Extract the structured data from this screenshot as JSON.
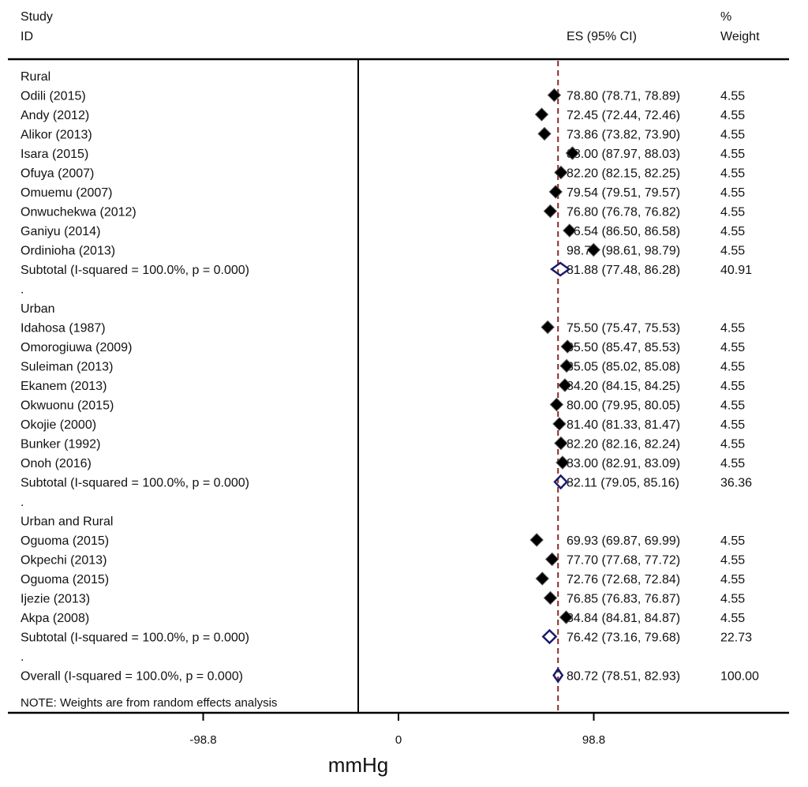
{
  "chart_data": {
    "type": "forest",
    "header": {
      "study_line1": "Study",
      "study_line2": "ID",
      "es_label": "ES (95% CI)",
      "weight_line1": "%",
      "weight_line2": "Weight"
    },
    "xlabel": "mmHg",
    "xlim": [
      -197.6,
      197.6
    ],
    "ticks": [
      {
        "value": -98.8,
        "label": "-98.8"
      },
      {
        "value": 0,
        "label": "0"
      },
      {
        "value": 98.8,
        "label": "98.8"
      }
    ],
    "reference_line": 80.72,
    "colors": {
      "point": "#000000",
      "diamond": "#1a1a6e",
      "refline": "#8b2a2a",
      "axis": "#000000"
    },
    "note": "NOTE: Weights are from random effects analysis",
    "rows": [
      {
        "kind": "group",
        "label": "Rural"
      },
      {
        "kind": "study",
        "label": "Odili (2015)",
        "es": 78.8,
        "lo": 78.71,
        "hi": 78.89,
        "es_text": "78.80 (78.71, 78.89)",
        "weight": "4.55"
      },
      {
        "kind": "study",
        "label": "Andy (2012)",
        "es": 72.45,
        "lo": 72.44,
        "hi": 72.46,
        "es_text": "72.45 (72.44, 72.46)",
        "weight": "4.55"
      },
      {
        "kind": "study",
        "label": "Alikor (2013)",
        "es": 73.86,
        "lo": 73.82,
        "hi": 73.9,
        "es_text": "73.86 (73.82, 73.90)",
        "weight": "4.55"
      },
      {
        "kind": "study",
        "label": "Isara (2015)",
        "es": 88.0,
        "lo": 87.97,
        "hi": 88.03,
        "es_text": "88.00 (87.97, 88.03)",
        "weight": "4.55"
      },
      {
        "kind": "study",
        "label": "Ofuya (2007)",
        "es": 82.2,
        "lo": 82.15,
        "hi": 82.25,
        "es_text": "82.20 (82.15, 82.25)",
        "weight": "4.55"
      },
      {
        "kind": "study",
        "label": "Omuemu (2007)",
        "es": 79.54,
        "lo": 79.51,
        "hi": 79.57,
        "es_text": "79.54 (79.51, 79.57)",
        "weight": "4.55"
      },
      {
        "kind": "study",
        "label": "Onwuchekwa (2012)",
        "es": 76.8,
        "lo": 76.78,
        "hi": 76.82,
        "es_text": "76.80 (76.78, 76.82)",
        "weight": "4.55"
      },
      {
        "kind": "study",
        "label": "Ganiyu (2014)",
        "es": 86.54,
        "lo": 86.5,
        "hi": 86.58,
        "es_text": "86.54 (86.50, 86.58)",
        "weight": "4.55"
      },
      {
        "kind": "study",
        "label": "Ordinioha (2013)",
        "es": 98.7,
        "lo": 98.61,
        "hi": 98.79,
        "es_text": "98.70 (98.61, 98.79)",
        "weight": "4.55"
      },
      {
        "kind": "subtotal",
        "label": "Subtotal  (I-squared = 100.0%, p = 0.000)",
        "es": 81.88,
        "lo": 77.48,
        "hi": 86.28,
        "es_text": "81.88 (77.48, 86.28)",
        "weight": "40.91"
      },
      {
        "kind": "spacer",
        "label": "."
      },
      {
        "kind": "group",
        "label": "Urban"
      },
      {
        "kind": "study",
        "label": "Idahosa (1987)",
        "es": 75.5,
        "lo": 75.47,
        "hi": 75.53,
        "es_text": "75.50 (75.47, 75.53)",
        "weight": "4.55"
      },
      {
        "kind": "study",
        "label": "Omorogiuwa (2009)",
        "es": 85.5,
        "lo": 85.47,
        "hi": 85.53,
        "es_text": "85.50 (85.47, 85.53)",
        "weight": "4.55"
      },
      {
        "kind": "study",
        "label": "Suleiman (2013)",
        "es": 85.05,
        "lo": 85.02,
        "hi": 85.08,
        "es_text": "85.05 (85.02, 85.08)",
        "weight": "4.55"
      },
      {
        "kind": "study",
        "label": "Ekanem (2013)",
        "es": 84.2,
        "lo": 84.15,
        "hi": 84.25,
        "es_text": "84.20 (84.15, 84.25)",
        "weight": "4.55"
      },
      {
        "kind": "study",
        "label": "Okwuonu (2015)",
        "es": 80.0,
        "lo": 79.95,
        "hi": 80.05,
        "es_text": "80.00 (79.95, 80.05)",
        "weight": "4.55"
      },
      {
        "kind": "study",
        "label": "Okojie (2000)",
        "es": 81.4,
        "lo": 81.33,
        "hi": 81.47,
        "es_text": "81.40 (81.33, 81.47)",
        "weight": "4.55"
      },
      {
        "kind": "study",
        "label": "Bunker (1992)",
        "es": 82.2,
        "lo": 82.16,
        "hi": 82.24,
        "es_text": "82.20 (82.16, 82.24)",
        "weight": "4.55"
      },
      {
        "kind": "study",
        "label": "Onoh (2016)",
        "es": 83.0,
        "lo": 82.91,
        "hi": 83.09,
        "es_text": "83.00 (82.91, 83.09)",
        "weight": "4.55"
      },
      {
        "kind": "subtotal",
        "label": "Subtotal  (I-squared = 100.0%, p = 0.000)",
        "es": 82.11,
        "lo": 79.05,
        "hi": 85.16,
        "es_text": "82.11 (79.05, 85.16)",
        "weight": "36.36"
      },
      {
        "kind": "spacer",
        "label": "."
      },
      {
        "kind": "group",
        "label": "Urban and Rural"
      },
      {
        "kind": "study",
        "label": "Oguoma (2015)",
        "es": 69.93,
        "lo": 69.87,
        "hi": 69.99,
        "es_text": "69.93 (69.87, 69.99)",
        "weight": "4.55"
      },
      {
        "kind": "study",
        "label": "Okpechi (2013)",
        "es": 77.7,
        "lo": 77.68,
        "hi": 77.72,
        "es_text": "77.70 (77.68, 77.72)",
        "weight": "4.55"
      },
      {
        "kind": "study",
        "label": "Oguoma (2015)",
        "es": 72.76,
        "lo": 72.68,
        "hi": 72.84,
        "es_text": "72.76 (72.68, 72.84)",
        "weight": "4.55"
      },
      {
        "kind": "study",
        "label": "Ijezie (2013)",
        "es": 76.85,
        "lo": 76.83,
        "hi": 76.87,
        "es_text": "76.85 (76.83, 76.87)",
        "weight": "4.55"
      },
      {
        "kind": "study",
        "label": "Akpa (2008)",
        "es": 84.84,
        "lo": 84.81,
        "hi": 84.87,
        "es_text": "84.84 (84.81, 84.87)",
        "weight": "4.55"
      },
      {
        "kind": "subtotal",
        "label": "Subtotal  (I-squared = 100.0%, p = 0.000)",
        "es": 76.42,
        "lo": 73.16,
        "hi": 79.68,
        "es_text": "76.42 (73.16, 79.68)",
        "weight": "22.73"
      },
      {
        "kind": "spacer",
        "label": "."
      },
      {
        "kind": "overall",
        "label": "Overall  (I-squared = 100.0%, p = 0.000)",
        "es": 80.72,
        "lo": 78.51,
        "hi": 82.93,
        "es_text": "80.72 (78.51, 82.93)",
        "weight": "100.00"
      }
    ]
  }
}
